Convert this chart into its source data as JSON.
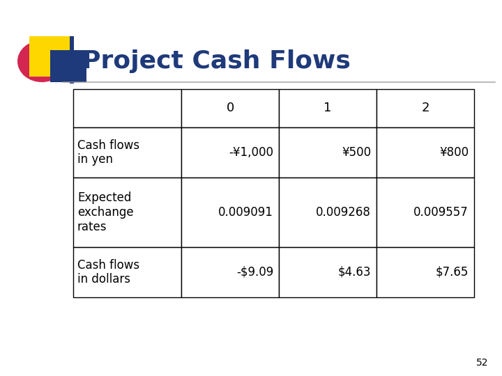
{
  "title": "Project Cash Flows",
  "title_color": "#1F3A7A",
  "title_fontsize": 26,
  "background_color": "#FFFFFF",
  "slide_number": "52",
  "table_headers": [
    "",
    "0",
    "1",
    "2"
  ],
  "table_rows": [
    [
      "Cash flows\nin yen",
      "-¥1,000",
      "¥500",
      "¥800"
    ],
    [
      "Expected\nexchange\nrates",
      "0.009091",
      "0.009268",
      "0.009557"
    ],
    [
      "Cash flows\nin dollars",
      "-$9.09",
      "$4.63",
      "$7.65"
    ]
  ],
  "text_color": "#000000",
  "table_font_size": 12,
  "header_font_size": 13,
  "decoration_yellow": "#FFD700",
  "decoration_blue": "#1F3A7A",
  "decoration_red": "#CC0033",
  "line_color": "#808080"
}
